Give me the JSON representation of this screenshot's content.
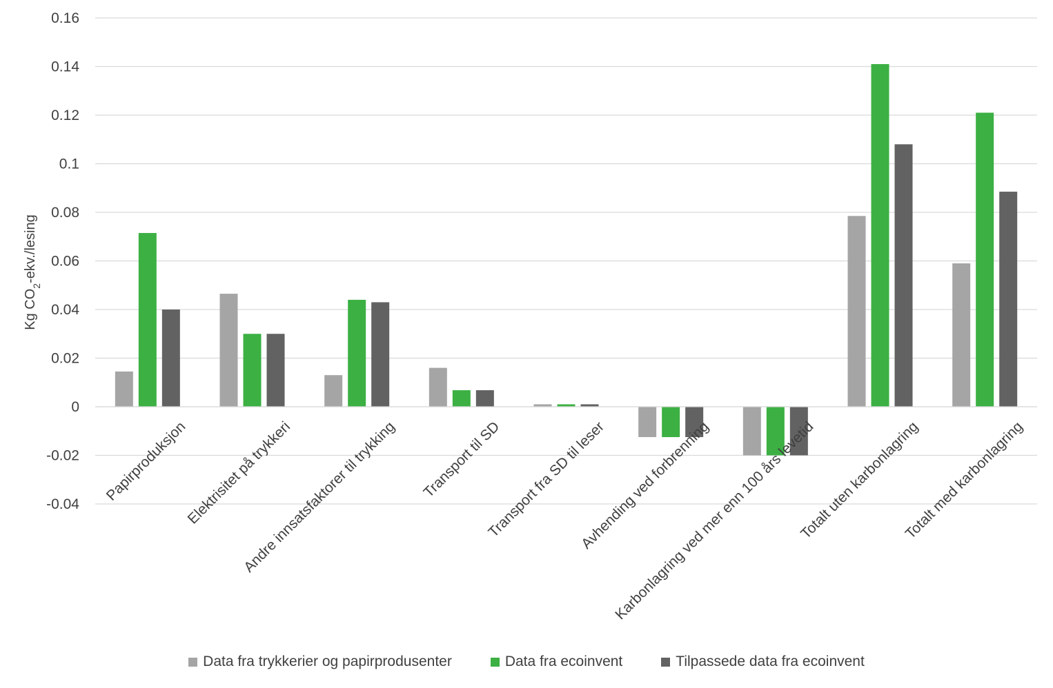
{
  "chart_data": {
    "type": "bar",
    "ylabel_parts": [
      "Kg CO",
      "2",
      "-ekv./lesing"
    ],
    "ylim": [
      -0.04,
      0.16
    ],
    "yticks": [
      "0.16",
      "0.14",
      "0.12",
      "0.1",
      "0.08",
      "0.06",
      "0.04",
      "0.02",
      "0",
      "-0.02",
      "-0.04"
    ],
    "ytick_values": [
      0.16,
      0.14,
      0.12,
      0.1,
      0.08,
      0.06,
      0.04,
      0.02,
      0,
      -0.02,
      -0.04
    ],
    "grid": true,
    "legend_position": "bottom",
    "categories": [
      "Papirproduksjon",
      "Elektrisitet på trykkeri",
      "Andre innsatsfaktorer til trykking",
      "Transport til SD",
      "Transport fra SD til leser",
      "Avhending ved forbrenning",
      "Karbonlagring ved mer enn 100 års levetid",
      "Totalt uten karbonlagring",
      "Totalt med karbonlagring"
    ],
    "series": [
      {
        "name": "Data fra trykkerier og papirprodusenter",
        "color": "#a5a5a5",
        "values": [
          0.0145,
          0.0465,
          0.013,
          0.016,
          0.001,
          -0.0125,
          -0.02,
          0.0785,
          0.059
        ]
      },
      {
        "name": "Data fra ecoinvent",
        "color": "#3cb043",
        "values": [
          0.0715,
          0.03,
          0.044,
          0.0068,
          0.001,
          -0.0125,
          -0.02,
          0.141,
          0.121
        ]
      },
      {
        "name": "Tilpassede data fra ecoinvent",
        "color": "#626262",
        "values": [
          0.04,
          0.03,
          0.043,
          0.0068,
          0.001,
          -0.0125,
          -0.02,
          0.108,
          0.0885
        ]
      }
    ]
  }
}
